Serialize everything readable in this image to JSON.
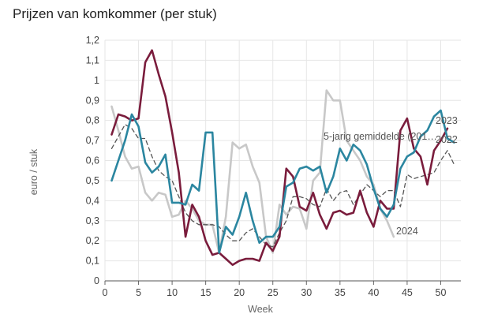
{
  "title": "Prijzen van komkommer (per stuk)",
  "chart_data": {
    "type": "line",
    "title": "Prijzen van komkommer (per stuk)",
    "xlabel": "Week",
    "ylabel": "euro / stuk",
    "xlim": [
      0,
      53
    ],
    "ylim": [
      0,
      1.2
    ],
    "x_ticks": [
      0,
      5,
      10,
      15,
      20,
      25,
      30,
      35,
      40,
      45,
      50
    ],
    "x_tick_labels": [
      "0",
      "5",
      "10",
      "15",
      "20",
      "25",
      "30",
      "35",
      "40",
      "45",
      "50"
    ],
    "y_ticks": [
      0,
      0.1,
      0.2,
      0.3,
      0.4,
      0.5,
      0.6,
      0.7,
      0.8,
      0.9,
      1,
      1.1,
      1.2
    ],
    "y_tick_labels": [
      "0",
      "0,1",
      "0,2",
      "0,3",
      "0,4",
      "0,5",
      "0,6",
      "0,7",
      "0,8",
      "0,9",
      "1",
      "1,1",
      "1,2"
    ],
    "grid": true,
    "series": [
      {
        "name": "2024",
        "color": "#c8c8c8",
        "dashed": false,
        "label_text": "2024",
        "x": [
          1,
          2,
          3,
          4,
          5,
          6,
          7,
          8,
          9,
          10,
          11,
          12,
          13,
          14,
          15,
          16,
          17,
          18,
          19,
          20,
          21,
          22,
          23,
          24,
          25,
          26,
          27,
          28,
          29,
          30,
          31,
          32,
          33,
          34,
          35,
          36,
          37,
          38,
          39,
          40,
          41,
          42,
          43
        ],
        "y": [
          0.87,
          0.75,
          0.62,
          0.56,
          0.57,
          0.44,
          0.4,
          0.44,
          0.43,
          0.32,
          0.33,
          0.4,
          0.36,
          0.3,
          0.28,
          0.28,
          0.14,
          0.32,
          0.69,
          0.66,
          0.68,
          0.57,
          0.49,
          0.22,
          0.14,
          0.38,
          0.33,
          0.37,
          0.36,
          0.26,
          0.5,
          0.54,
          0.95,
          0.9,
          0.9,
          0.7,
          0.65,
          0.6,
          0.52,
          0.48,
          0.36,
          0.3,
          0.22
        ]
      },
      {
        "name": "5-jarig gemiddelde (201…",
        "color": "#555555",
        "dashed": true,
        "label_text": "5-jarig gemiddelde (201…",
        "x": [
          1,
          2,
          3,
          4,
          5,
          6,
          7,
          8,
          9,
          10,
          11,
          12,
          13,
          14,
          15,
          16,
          17,
          18,
          19,
          20,
          21,
          22,
          23,
          24,
          25,
          26,
          27,
          28,
          29,
          30,
          31,
          32,
          33,
          34,
          35,
          36,
          37,
          38,
          39,
          40,
          41,
          42,
          43,
          44,
          45,
          46,
          47,
          48,
          49,
          50,
          51,
          52
        ],
        "y": [
          0.66,
          0.72,
          0.78,
          0.76,
          0.71,
          0.71,
          0.62,
          0.55,
          0.52,
          0.5,
          0.42,
          0.34,
          0.3,
          0.28,
          0.28,
          0.28,
          0.27,
          0.23,
          0.2,
          0.2,
          0.24,
          0.26,
          0.22,
          0.18,
          0.17,
          0.24,
          0.3,
          0.42,
          0.42,
          0.41,
          0.38,
          0.37,
          0.46,
          0.4,
          0.44,
          0.45,
          0.38,
          0.43,
          0.48,
          0.45,
          0.42,
          0.45,
          0.45,
          0.37,
          0.53,
          0.51,
          0.52,
          0.53,
          0.54,
          0.6,
          0.65,
          0.58
        ]
      },
      {
        "name": "2023",
        "color": "#7a1c3c",
        "dashed": false,
        "label_text": "2023",
        "x": [
          1,
          2,
          3,
          4,
          5,
          6,
          7,
          8,
          9,
          10,
          11,
          12,
          13,
          14,
          15,
          16,
          17,
          18,
          19,
          20,
          21,
          22,
          23,
          24,
          25,
          26,
          27,
          28,
          29,
          30,
          31,
          32,
          33,
          34,
          35,
          36,
          37,
          38,
          39,
          40,
          41,
          42,
          43,
          44,
          45,
          46,
          47,
          48,
          49,
          50,
          51
        ],
        "y": [
          0.73,
          0.83,
          0.82,
          0.8,
          0.81,
          1.09,
          1.15,
          1.03,
          0.92,
          0.74,
          0.54,
          0.22,
          0.38,
          0.32,
          0.2,
          0.13,
          0.14,
          0.11,
          0.08,
          0.1,
          0.11,
          0.11,
          0.1,
          0.19,
          0.15,
          0.22,
          0.56,
          0.52,
          0.37,
          0.35,
          0.44,
          0.33,
          0.26,
          0.34,
          0.35,
          0.33,
          0.34,
          0.45,
          0.34,
          0.27,
          0.4,
          0.36,
          0.36,
          0.75,
          0.81,
          0.66,
          0.62,
          0.48,
          0.65,
          0.7,
          0.76
        ]
      },
      {
        "name": "2022",
        "color": "#2b86a0",
        "dashed": false,
        "label_text": "2022",
        "x": [
          1,
          2,
          3,
          4,
          5,
          6,
          7,
          8,
          9,
          10,
          11,
          12,
          13,
          14,
          15,
          16,
          17,
          18,
          19,
          20,
          21,
          22,
          23,
          24,
          25,
          26,
          27,
          28,
          29,
          30,
          31,
          32,
          33,
          34,
          35,
          36,
          37,
          38,
          39,
          40,
          41,
          42,
          43,
          44,
          45,
          46,
          47,
          48,
          49,
          50,
          51,
          52
        ],
        "y": [
          0.5,
          0.6,
          0.7,
          0.83,
          0.77,
          0.59,
          0.54,
          0.57,
          0.63,
          0.39,
          0.39,
          0.38,
          0.48,
          0.45,
          0.74,
          0.74,
          0.14,
          0.27,
          0.23,
          0.32,
          0.44,
          0.3,
          0.19,
          0.22,
          0.22,
          0.27,
          0.47,
          0.49,
          0.56,
          0.57,
          0.55,
          0.57,
          0.44,
          0.52,
          0.66,
          0.6,
          0.68,
          0.65,
          0.58,
          0.46,
          0.36,
          0.32,
          0.38,
          0.56,
          0.62,
          0.64,
          0.72,
          0.75,
          0.82,
          0.85,
          0.71,
          0.69
        ]
      }
    ]
  }
}
